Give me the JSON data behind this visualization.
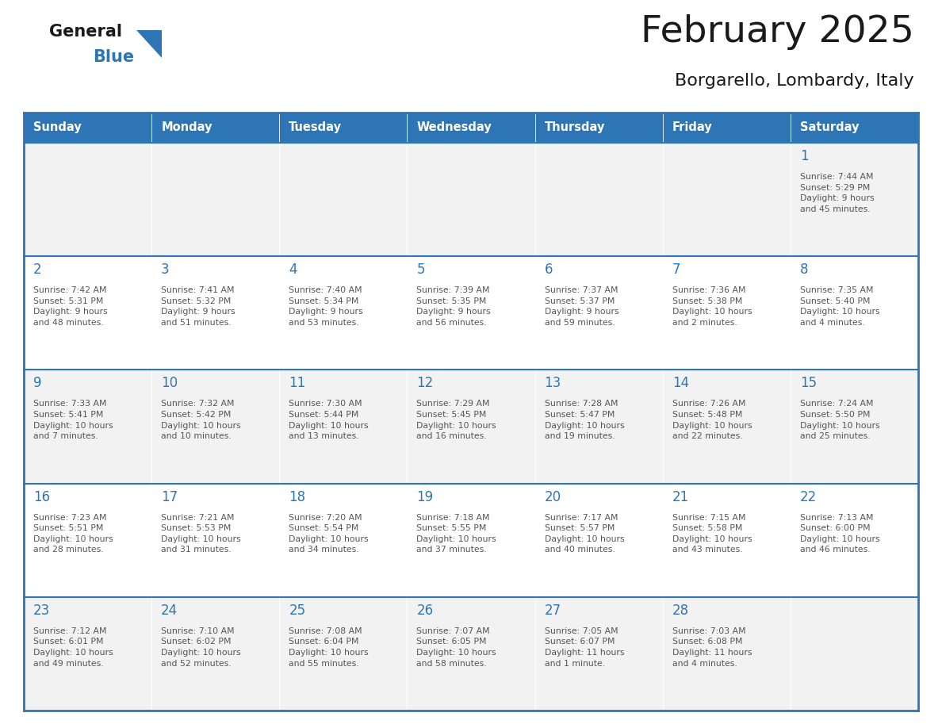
{
  "title": "February 2025",
  "subtitle": "Borgarello, Lombardy, Italy",
  "header_bg": "#2e75b6",
  "header_text": "#ffffff",
  "cell_bg_even": "#f2f2f2",
  "cell_bg_odd": "#ffffff",
  "day_number_color": "#2e75b6",
  "text_color": "#555555",
  "border_color": "#2e75b6",
  "days_of_week": [
    "Sunday",
    "Monday",
    "Tuesday",
    "Wednesday",
    "Thursday",
    "Friday",
    "Saturday"
  ],
  "weeks": [
    [
      null,
      null,
      null,
      null,
      null,
      null,
      {
        "day": "1",
        "sunrise": "7:44 AM",
        "sunset": "5:29 PM",
        "daylight": "9 hours\nand 45 minutes."
      }
    ],
    [
      {
        "day": "2",
        "sunrise": "7:42 AM",
        "sunset": "5:31 PM",
        "daylight": "9 hours\nand 48 minutes."
      },
      {
        "day": "3",
        "sunrise": "7:41 AM",
        "sunset": "5:32 PM",
        "daylight": "9 hours\nand 51 minutes."
      },
      {
        "day": "4",
        "sunrise": "7:40 AM",
        "sunset": "5:34 PM",
        "daylight": "9 hours\nand 53 minutes."
      },
      {
        "day": "5",
        "sunrise": "7:39 AM",
        "sunset": "5:35 PM",
        "daylight": "9 hours\nand 56 minutes."
      },
      {
        "day": "6",
        "sunrise": "7:37 AM",
        "sunset": "5:37 PM",
        "daylight": "9 hours\nand 59 minutes."
      },
      {
        "day": "7",
        "sunrise": "7:36 AM",
        "sunset": "5:38 PM",
        "daylight": "10 hours\nand 2 minutes."
      },
      {
        "day": "8",
        "sunrise": "7:35 AM",
        "sunset": "5:40 PM",
        "daylight": "10 hours\nand 4 minutes."
      }
    ],
    [
      {
        "day": "9",
        "sunrise": "7:33 AM",
        "sunset": "5:41 PM",
        "daylight": "10 hours\nand 7 minutes."
      },
      {
        "day": "10",
        "sunrise": "7:32 AM",
        "sunset": "5:42 PM",
        "daylight": "10 hours\nand 10 minutes."
      },
      {
        "day": "11",
        "sunrise": "7:30 AM",
        "sunset": "5:44 PM",
        "daylight": "10 hours\nand 13 minutes."
      },
      {
        "day": "12",
        "sunrise": "7:29 AM",
        "sunset": "5:45 PM",
        "daylight": "10 hours\nand 16 minutes."
      },
      {
        "day": "13",
        "sunrise": "7:28 AM",
        "sunset": "5:47 PM",
        "daylight": "10 hours\nand 19 minutes."
      },
      {
        "day": "14",
        "sunrise": "7:26 AM",
        "sunset": "5:48 PM",
        "daylight": "10 hours\nand 22 minutes."
      },
      {
        "day": "15",
        "sunrise": "7:24 AM",
        "sunset": "5:50 PM",
        "daylight": "10 hours\nand 25 minutes."
      }
    ],
    [
      {
        "day": "16",
        "sunrise": "7:23 AM",
        "sunset": "5:51 PM",
        "daylight": "10 hours\nand 28 minutes."
      },
      {
        "day": "17",
        "sunrise": "7:21 AM",
        "sunset": "5:53 PM",
        "daylight": "10 hours\nand 31 minutes."
      },
      {
        "day": "18",
        "sunrise": "7:20 AM",
        "sunset": "5:54 PM",
        "daylight": "10 hours\nand 34 minutes."
      },
      {
        "day": "19",
        "sunrise": "7:18 AM",
        "sunset": "5:55 PM",
        "daylight": "10 hours\nand 37 minutes."
      },
      {
        "day": "20",
        "sunrise": "7:17 AM",
        "sunset": "5:57 PM",
        "daylight": "10 hours\nand 40 minutes."
      },
      {
        "day": "21",
        "sunrise": "7:15 AM",
        "sunset": "5:58 PM",
        "daylight": "10 hours\nand 43 minutes."
      },
      {
        "day": "22",
        "sunrise": "7:13 AM",
        "sunset": "6:00 PM",
        "daylight": "10 hours\nand 46 minutes."
      }
    ],
    [
      {
        "day": "23",
        "sunrise": "7:12 AM",
        "sunset": "6:01 PM",
        "daylight": "10 hours\nand 49 minutes."
      },
      {
        "day": "24",
        "sunrise": "7:10 AM",
        "sunset": "6:02 PM",
        "daylight": "10 hours\nand 52 minutes."
      },
      {
        "day": "25",
        "sunrise": "7:08 AM",
        "sunset": "6:04 PM",
        "daylight": "10 hours\nand 55 minutes."
      },
      {
        "day": "26",
        "sunrise": "7:07 AM",
        "sunset": "6:05 PM",
        "daylight": "10 hours\nand 58 minutes."
      },
      {
        "day": "27",
        "sunrise": "7:05 AM",
        "sunset": "6:07 PM",
        "daylight": "11 hours\nand 1 minute."
      },
      {
        "day": "28",
        "sunrise": "7:03 AM",
        "sunset": "6:08 PM",
        "daylight": "11 hours\nand 4 minutes."
      },
      null
    ]
  ]
}
